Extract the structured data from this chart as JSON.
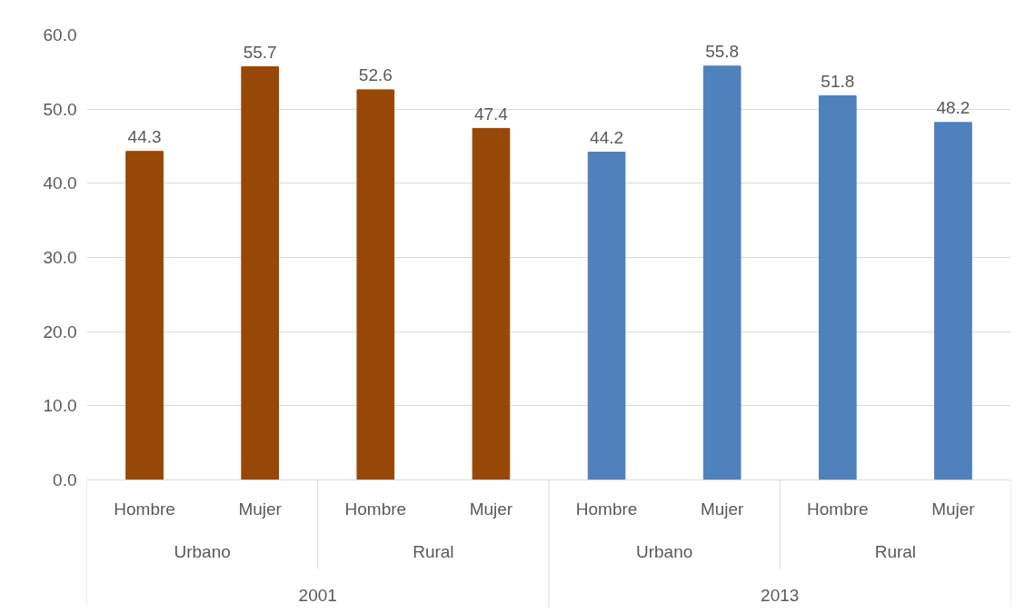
{
  "chart_data": {
    "type": "bar",
    "categories": [
      "Hombre",
      "Mujer",
      "Hombre",
      "Mujer",
      "Hombre",
      "Mujer",
      "Hombre",
      "Mujer"
    ],
    "values": [
      44.3,
      55.7,
      52.6,
      47.4,
      44.2,
      55.8,
      51.8,
      48.2
    ],
    "colors": [
      "#974706",
      "#974706",
      "#974706",
      "#974706",
      "#4f81bd",
      "#4f81bd",
      "#4f81bd",
      "#4f81bd"
    ],
    "ylim": [
      0,
      60
    ],
    "yticks": [
      {
        "value": 0,
        "label": "0.0"
      },
      {
        "value": 10,
        "label": "10.0"
      },
      {
        "value": 20,
        "label": "20.0"
      },
      {
        "value": 30,
        "label": "30.0"
      },
      {
        "value": 40,
        "label": "40.0"
      },
      {
        "value": 50,
        "label": "50.0"
      },
      {
        "value": 60,
        "label": "60.0"
      }
    ],
    "annotations": [
      "Urbano",
      "Rural",
      "Urbano",
      "Rural",
      "2001",
      "2013"
    ],
    "data_labels": true,
    "grid": "y"
  }
}
